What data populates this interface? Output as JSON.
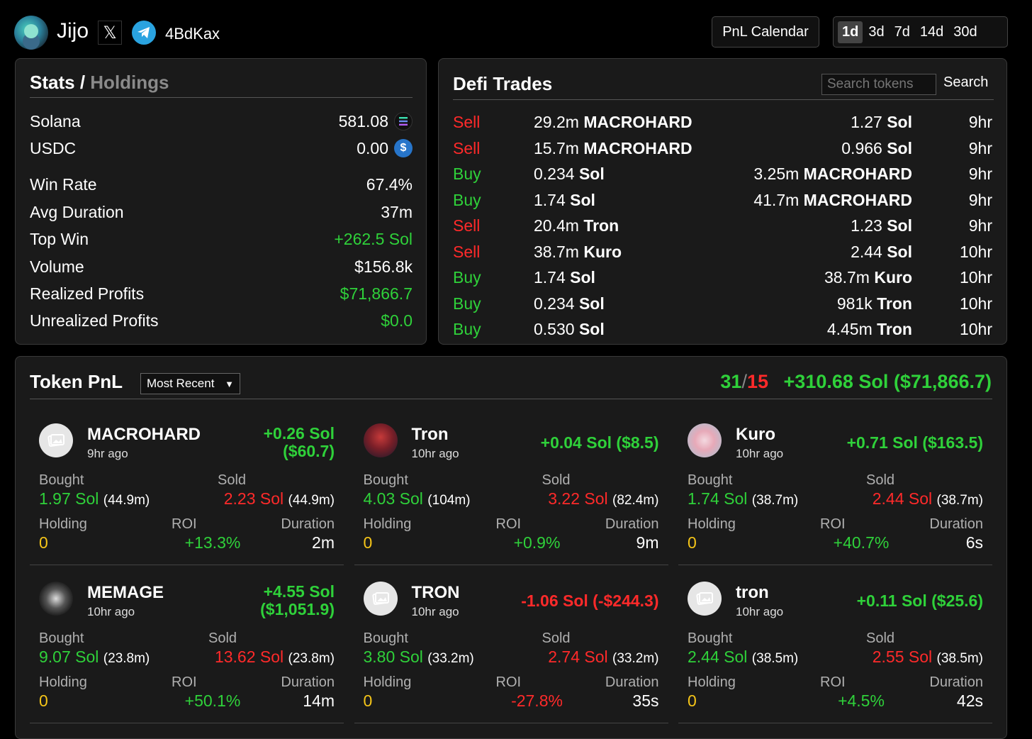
{
  "header": {
    "user_name": "Jijo",
    "wallet": "4BdKax",
    "pnl_calendar_label": "PnL Calendar",
    "ranges": [
      "1d",
      "3d",
      "7d",
      "14d",
      "30d"
    ],
    "active_range": "1d"
  },
  "stats": {
    "title": "Stats",
    "separator": "/",
    "holdings_tab": "Holdings",
    "solana_label": "Solana",
    "solana_value": "581.08",
    "usdc_label": "USDC",
    "usdc_value": "0.00",
    "win_rate_label": "Win Rate",
    "win_rate_value": "67.4%",
    "avg_duration_label": "Avg Duration",
    "avg_duration_value": "37m",
    "top_win_label": "Top Win",
    "top_win_value": "+262.5 Sol",
    "volume_label": "Volume",
    "volume_value": "$156.8k",
    "realized_label": "Realized Profits",
    "realized_value": "$71,866.7",
    "unrealized_label": "Unrealized Profits",
    "unrealized_value": "$0.0"
  },
  "defi": {
    "title": "Defi Trades",
    "search_placeholder": "Search tokens",
    "search_button": "Search",
    "trades": [
      {
        "side": "Sell",
        "spent_amt": "29.2m",
        "spent_tok": "MACROHARD",
        "recv_amt": "1.27",
        "recv_tok": "Sol",
        "time": "9hr"
      },
      {
        "side": "Sell",
        "spent_amt": "15.7m",
        "spent_tok": "MACROHARD",
        "recv_amt": "0.966",
        "recv_tok": "Sol",
        "time": "9hr"
      },
      {
        "side": "Buy",
        "spent_amt": "0.234",
        "spent_tok": "Sol",
        "recv_amt": "3.25m",
        "recv_tok": "MACROHARD",
        "time": "9hr"
      },
      {
        "side": "Buy",
        "spent_amt": "1.74",
        "spent_tok": "Sol",
        "recv_amt": "41.7m",
        "recv_tok": "MACROHARD",
        "time": "9hr"
      },
      {
        "side": "Sell",
        "spent_amt": "20.4m",
        "spent_tok": "Tron",
        "recv_amt": "1.23",
        "recv_tok": "Sol",
        "time": "9hr"
      },
      {
        "side": "Sell",
        "spent_amt": "38.7m",
        "spent_tok": "Kuro",
        "recv_amt": "2.44",
        "recv_tok": "Sol",
        "time": "10hr"
      },
      {
        "side": "Buy",
        "spent_amt": "1.74",
        "spent_tok": "Sol",
        "recv_amt": "38.7m",
        "recv_tok": "Kuro",
        "time": "10hr"
      },
      {
        "side": "Buy",
        "spent_amt": "0.234",
        "spent_tok": "Sol",
        "recv_amt": "981k",
        "recv_tok": "Tron",
        "time": "10hr"
      },
      {
        "side": "Buy",
        "spent_amt": "0.530",
        "spent_tok": "Sol",
        "recv_amt": "4.45m",
        "recv_tok": "Tron",
        "time": "10hr"
      }
    ]
  },
  "token_pnl": {
    "title": "Token PnL",
    "sort_label": "Most Recent",
    "wins": "31",
    "slash": "/",
    "losses": "15",
    "total": "+310.68 Sol ($71,866.7)",
    "labels": {
      "bought": "Bought",
      "sold": "Sold",
      "holding": "Holding",
      "roi": "ROI",
      "duration": "Duration"
    },
    "cards": [
      {
        "name": "MACROHARD",
        "age": "9hr ago",
        "pnl": "+0.26 Sol",
        "pnl_usd": "($60.7)",
        "positive": true,
        "bought_sol": "1.97 Sol",
        "bought_tok": "(44.9m)",
        "sold_sol": "2.23 Sol",
        "sold_tok": "(44.9m)",
        "holding": "0",
        "roi": "+13.3%",
        "duration": "2m",
        "img": "placeholder"
      },
      {
        "name": "Tron",
        "age": "10hr ago",
        "pnl": "+0.04 Sol ($8.5)",
        "pnl_usd": "",
        "positive": true,
        "bought_sol": "4.03 Sol",
        "bought_tok": "(104m)",
        "sold_sol": "3.22 Sol",
        "sold_tok": "(82.4m)",
        "holding": "0",
        "roi": "+0.9%",
        "duration": "9m",
        "img": "tron"
      },
      {
        "name": "Kuro",
        "age": "10hr ago",
        "pnl": "+0.71 Sol ($163.5)",
        "pnl_usd": "",
        "positive": true,
        "bought_sol": "1.74 Sol",
        "bought_tok": "(38.7m)",
        "sold_sol": "2.44 Sol",
        "sold_tok": "(38.7m)",
        "holding": "0",
        "roi": "+40.7%",
        "duration": "6s",
        "img": "kuro"
      },
      {
        "name": "MEMAGE",
        "age": "10hr ago",
        "pnl": "+4.55 Sol",
        "pnl_usd": "($1,051.9)",
        "positive": true,
        "bought_sol": "9.07 Sol",
        "bought_tok": "(23.8m)",
        "sold_sol": "13.62 Sol",
        "sold_tok": "(23.8m)",
        "holding": "0",
        "roi": "+50.1%",
        "duration": "14m",
        "img": "memage"
      },
      {
        "name": "TRON",
        "age": "10hr ago",
        "pnl": "-1.06 Sol (-$244.3)",
        "pnl_usd": "",
        "positive": false,
        "bought_sol": "3.80 Sol",
        "bought_tok": "(33.2m)",
        "sold_sol": "2.74 Sol",
        "sold_tok": "(33.2m)",
        "holding": "0",
        "roi": "-27.8%",
        "duration": "35s",
        "img": "placeholder"
      },
      {
        "name": "tron",
        "age": "10hr ago",
        "pnl": "+0.11 Sol ($25.6)",
        "pnl_usd": "",
        "positive": true,
        "bought_sol": "2.44 Sol",
        "bought_tok": "(38.5m)",
        "sold_sol": "2.55 Sol",
        "sold_tok": "(38.5m)",
        "holding": "0",
        "roi": "+4.5%",
        "duration": "42s",
        "img": "placeholder"
      }
    ]
  },
  "colors": {
    "green": "#2fd13a",
    "red": "#ff2a2a",
    "yellow": "#f5c518",
    "background": "#000000",
    "panel": "#1a1a1a"
  }
}
